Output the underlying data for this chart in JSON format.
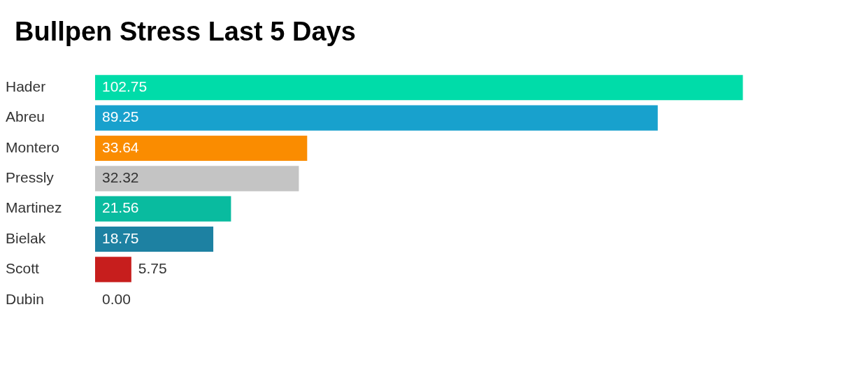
{
  "chart_data": {
    "type": "bar",
    "orientation": "horizontal",
    "title": "Bullpen Stress Last 5 Days",
    "categories": [
      "Hader",
      "Abreu",
      "Montero",
      "Pressly",
      "Martinez",
      "Bielak",
      "Scott",
      "Dubin"
    ],
    "values": [
      102.75,
      89.25,
      33.64,
      32.32,
      21.56,
      18.75,
      5.75,
      0
    ],
    "colors": [
      "#00dca9",
      "#18a1cd",
      "#fa8c00",
      "#c4c4c4",
      "#09bb9f",
      "#1d81a2",
      "#c71e1d",
      "#888888"
    ],
    "value_labels": [
      "102.75",
      "89.25",
      "33.64",
      "32.32",
      "21.56",
      "18.75",
      "5.75",
      "0.00"
    ],
    "grid": false,
    "legend": false
  }
}
